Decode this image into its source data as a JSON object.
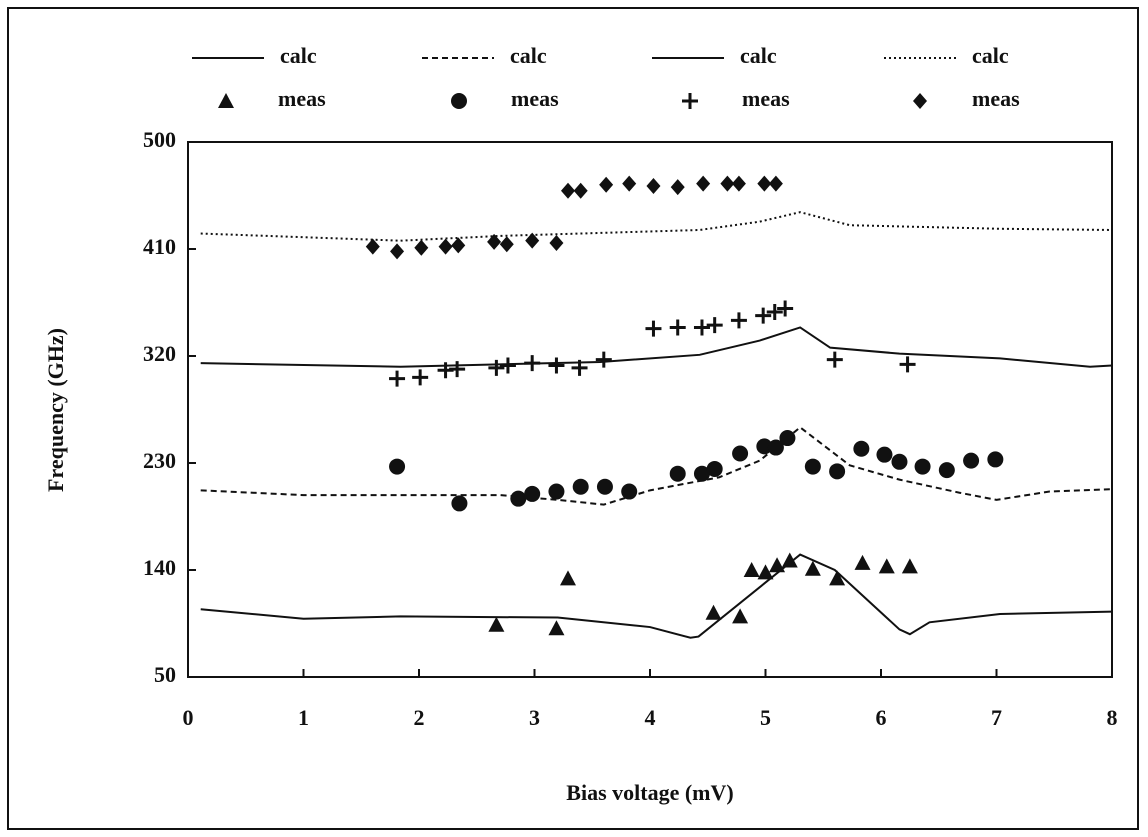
{
  "chart_data": {
    "type": "line",
    "xlabel": "Bias voltage (mV)",
    "ylabel": "Frequency (GHz)",
    "xlim": [
      0,
      8
    ],
    "xticks": [
      0,
      1,
      2,
      3,
      4,
      5,
      6,
      7,
      8
    ],
    "ylim": [
      50,
      500
    ],
    "yticks": [
      50,
      140,
      230,
      320,
      410,
      500
    ],
    "grid": false,
    "legend": "top",
    "series": [
      {
        "name": "calc",
        "type": "line",
        "style": "solid",
        "color": "#111111",
        "x": [
          0.11,
          1.0,
          1.84,
          3.2,
          4.0,
          4.35,
          4.42,
          5.3,
          5.6,
          6.16,
          6.25,
          6.42,
          7.03,
          8
        ],
        "values": [
          107,
          99,
          101,
          100,
          92,
          83,
          84,
          153,
          140,
          90,
          86,
          96,
          103,
          105
        ]
      },
      {
        "name": "calc",
        "type": "line",
        "style": "dashed",
        "color": "#111111",
        "x": [
          0.11,
          1.0,
          2.7,
          3.2,
          3.6,
          4.0,
          4.6,
          4.95,
          5.3,
          5.73,
          6.16,
          6.68,
          7.0,
          7.46,
          8
        ],
        "values": [
          207,
          203,
          203,
          199,
          195,
          207,
          218,
          232,
          260,
          228,
          216,
          205,
          199,
          206,
          208
        ]
      },
      {
        "name": "calc",
        "type": "line",
        "style": "solid",
        "color": "#111111",
        "x": [
          0.11,
          1.84,
          3.57,
          4.43,
          4.95,
          5.3,
          5.56,
          6.16,
          7.03,
          7.81,
          8
        ],
        "values": [
          314,
          311,
          315,
          321,
          333,
          344,
          327,
          322,
          318,
          311,
          312
        ]
      },
      {
        "name": "calc",
        "type": "line",
        "style": "dotted",
        "color": "#111111",
        "x": [
          0.11,
          1.84,
          2.7,
          4.43,
          4.95,
          5.3,
          5.73,
          7.03,
          8
        ],
        "values": [
          423,
          417,
          421,
          426,
          433,
          441,
          430,
          427,
          426
        ]
      },
      {
        "name": "meas",
        "type": "scatter",
        "marker": "triangle",
        "color": "#111111",
        "x": [
          2.67,
          3.19,
          3.29,
          4.55,
          4.78,
          4.88,
          5.0,
          5.1,
          5.21,
          5.41,
          5.62,
          5.84,
          6.05,
          6.25
        ],
        "values": [
          94,
          91,
          133,
          104,
          101,
          140,
          138,
          144,
          148,
          141,
          133,
          146,
          143,
          143
        ]
      },
      {
        "name": "meas",
        "type": "scatter",
        "marker": "circle",
        "color": "#111111",
        "x": [
          1.81,
          2.35,
          2.86,
          2.98,
          3.19,
          3.4,
          3.61,
          3.82,
          4.24,
          4.45,
          4.56,
          4.78,
          4.99,
          5.09,
          5.19,
          5.41,
          5.62,
          5.83,
          6.03,
          6.16,
          6.36,
          6.57,
          6.78,
          6.99
        ],
        "values": [
          227,
          196,
          200,
          204,
          206,
          210,
          210,
          206,
          221,
          221,
          225,
          238,
          244,
          243,
          251,
          227,
          223,
          242,
          237,
          231,
          227,
          224,
          232,
          233
        ]
      },
      {
        "name": "meas",
        "type": "scatter",
        "marker": "plus",
        "color": "#111111",
        "x": [
          1.81,
          2.01,
          2.23,
          2.33,
          2.67,
          2.77,
          2.98,
          3.19,
          3.39,
          3.6,
          4.03,
          4.24,
          4.45,
          4.56,
          4.77,
          4.98,
          5.08,
          5.17,
          5.6,
          6.23
        ],
        "values": [
          301,
          302,
          308,
          309,
          310,
          312,
          314,
          312,
          310,
          317,
          343,
          344,
          344,
          346,
          350,
          354,
          357,
          360,
          317,
          313
        ]
      },
      {
        "name": "meas",
        "type": "scatter",
        "marker": "diamond",
        "color": "#111111",
        "x": [
          1.6,
          1.81,
          2.02,
          2.23,
          2.34,
          2.65,
          2.76,
          2.98,
          3.19,
          3.29,
          3.4,
          3.62,
          3.82,
          4.03,
          4.24,
          4.46,
          4.67,
          4.77,
          4.99,
          5.09
        ],
        "values": [
          412,
          408,
          411,
          412,
          413,
          416,
          414,
          417,
          415,
          459,
          459,
          464,
          465,
          463,
          462,
          465,
          465,
          465,
          465,
          465
        ]
      }
    ]
  }
}
